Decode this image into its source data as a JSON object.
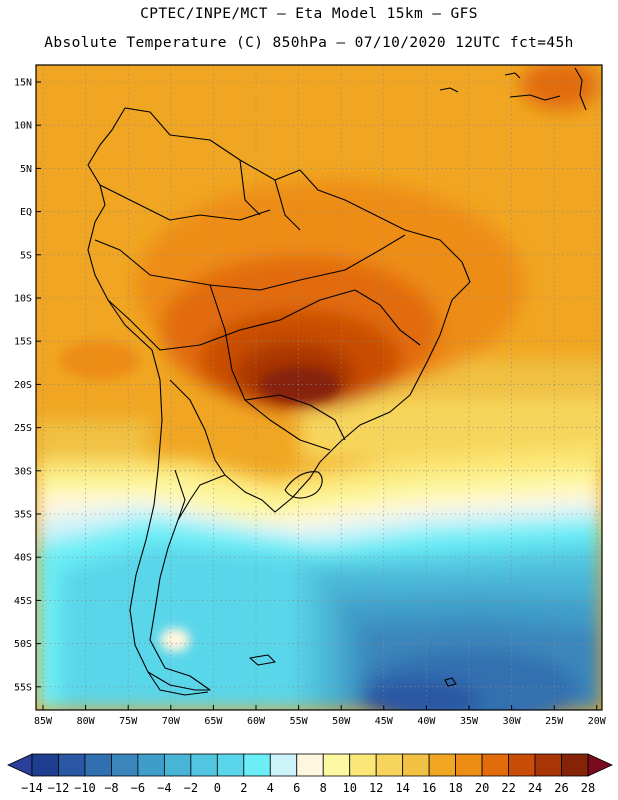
{
  "header": {
    "line1": "CPTEC/INPE/MCT –  Eta Model 15km – GFS",
    "line2": "Absolute Temperature (C) 850hPa – 07/10/2020 12UTC fct=45h"
  },
  "lat_labels": [
    "15N",
    "10N",
    "5N",
    "EQ",
    "5S",
    "10S",
    "15S",
    "20S",
    "25S",
    "30S",
    "35S",
    "40S",
    "45S",
    "50S",
    "55S"
  ],
  "lon_labels": [
    "85W",
    "80W",
    "75W",
    "70W",
    "65W",
    "60W",
    "55W",
    "50W",
    "45W",
    "40W",
    "35W",
    "30W",
    "25W",
    "20W"
  ],
  "colorbar": {
    "labels": [
      "-14",
      "-12",
      "-10",
      "-8",
      "-6",
      "-4",
      "-2",
      "0",
      "2",
      "4",
      "6",
      "8",
      "10",
      "12",
      "14",
      "16",
      "18",
      "20",
      "22",
      "24",
      "26",
      "28"
    ],
    "colors": [
      "#1e3f8f",
      "#2a57a3",
      "#3170b0",
      "#3a86bc",
      "#3f9dc9",
      "#48b4d6",
      "#52c6e0",
      "#5ad6ea",
      "#6ceef6",
      "#cdf3fa",
      "#fff6e0",
      "#fdf8a2",
      "#fbe777",
      "#f7d55c",
      "#f0c143",
      "#f0a622",
      "#ee8d14",
      "#e26c0c",
      "#c94d06",
      "#a83505",
      "#852307"
    ],
    "low_color": "#2a3f9a",
    "high_color": "#7a0b1f"
  }
}
